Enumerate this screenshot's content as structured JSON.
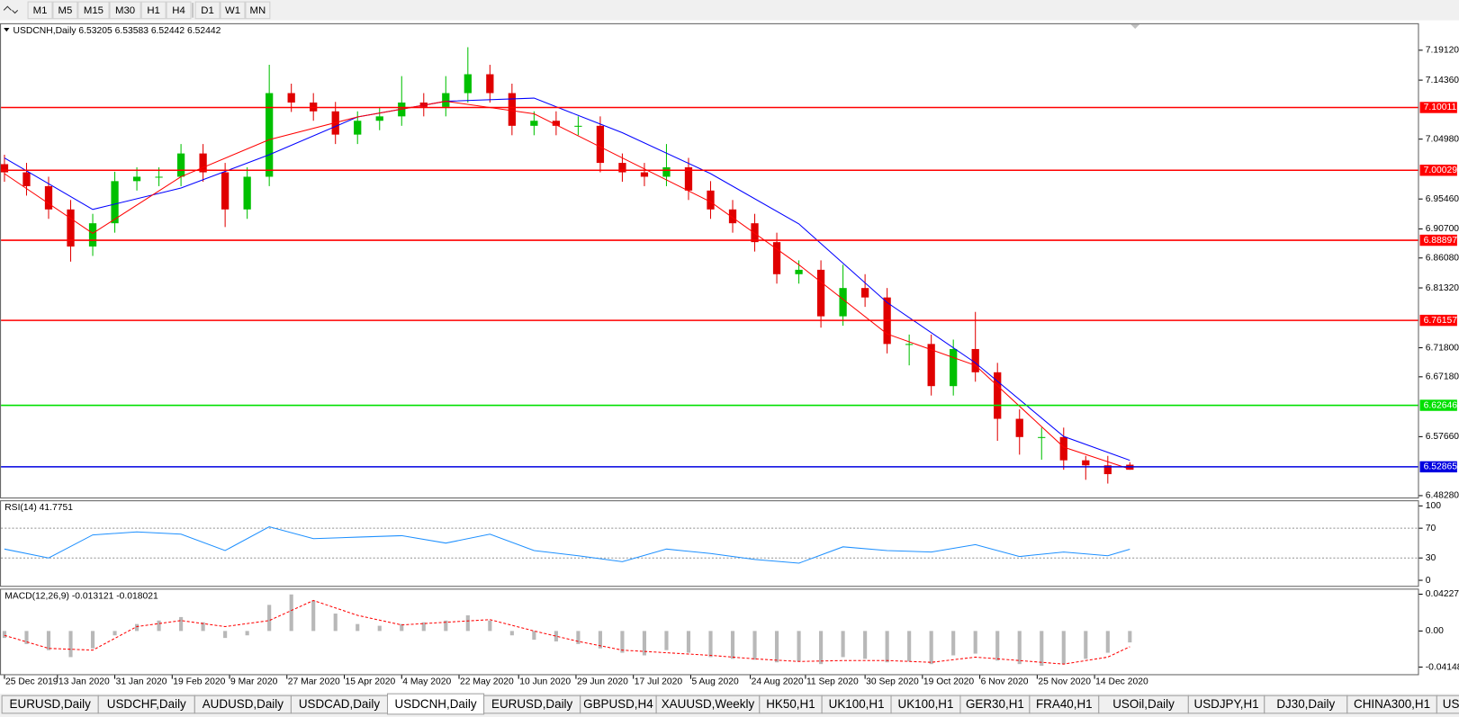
{
  "toolbar": [
    "M1",
    "M5",
    "M15",
    "M30",
    "H1",
    "H4",
    "D1",
    "W1",
    "MN"
  ],
  "tabs": [
    "EURUSD,Daily",
    "USDCHF,Daily",
    "AUDUSD,Daily",
    "USDCAD,Daily",
    "USDCNH,Daily",
    "EURUSD,Daily",
    "GBPUSD,H4",
    "XAUUSD,Weekly",
    "HK50,H1",
    "UK100,H1",
    "UK100,H1",
    "GER30,H1",
    "FRA40,H1",
    "USOil,Daily",
    "USDJPY,H1",
    "DJ30,Daily",
    "CHINA300,H1",
    "US"
  ],
  "chart_data": [
    {
      "type": "candlestick",
      "title": "USDCNH,Daily  6.53205 6.53583 6.52442 6.52442",
      "x": [
        0,
        1,
        2,
        3,
        4,
        5,
        6,
        7,
        8,
        9,
        10,
        11,
        12,
        13,
        14,
        15,
        16,
        17,
        18,
        19,
        20,
        21,
        22,
        23,
        24,
        25,
        26,
        27,
        28,
        29,
        30,
        31,
        32,
        33,
        34,
        35,
        36,
        37,
        38,
        39,
        40,
        41,
        42,
        43,
        44,
        45,
        46,
        47,
        48,
        49,
        50,
        51
      ],
      "open": [
        7.01,
        6.997,
        6.975,
        6.938,
        6.879,
        6.916,
        6.983,
        6.99,
        6.99,
        7.027,
        6.997,
        6.938,
        6.99,
        7.123,
        7.108,
        7.094,
        7.057,
        7.079,
        7.086,
        7.108,
        7.101,
        7.123,
        7.153,
        7.123,
        7.071,
        7.079,
        7.071,
        7.071,
        7.012,
        6.997,
        6.99,
        7.005,
        6.968,
        6.938,
        6.916,
        6.886,
        6.835,
        6.842,
        6.768,
        6.813,
        6.798,
        6.724,
        6.724,
        6.657,
        6.716,
        6.679,
        6.605,
        6.576,
        6.576,
        6.539,
        6.531,
        6.532
      ],
      "high": [
        7.025,
        7.012,
        6.99,
        6.953,
        6.931,
        6.998,
        7.005,
        7.005,
        7.042,
        7.042,
        7.012,
        7.005,
        7.168,
        7.138,
        7.123,
        7.109,
        7.094,
        7.101,
        7.15,
        7.123,
        7.15,
        7.196,
        7.168,
        7.138,
        7.094,
        7.094,
        7.086,
        7.086,
        7.027,
        7.012,
        7.042,
        7.02,
        6.983,
        6.953,
        6.931,
        6.901,
        6.857,
        6.857,
        6.85,
        6.835,
        6.813,
        6.739,
        6.739,
        6.731,
        6.775,
        6.694,
        6.62,
        6.591,
        6.591,
        6.546,
        6.546,
        6.536
      ],
      "low": [
        6.982,
        6.96,
        6.923,
        6.855,
        6.864,
        6.901,
        6.968,
        6.975,
        6.975,
        6.982,
        6.91,
        6.923,
        6.975,
        7.093,
        7.079,
        7.042,
        7.042,
        7.064,
        7.071,
        7.086,
        7.086,
        7.108,
        7.108,
        7.056,
        7.056,
        7.056,
        7.056,
        6.997,
        6.982,
        6.975,
        6.975,
        6.953,
        6.923,
        6.901,
        6.871,
        6.82,
        6.82,
        6.75,
        6.753,
        6.783,
        6.709,
        6.69,
        6.642,
        6.642,
        6.664,
        6.57,
        6.548,
        6.54,
        6.524,
        6.508,
        6.502,
        6.524
      ],
      "close": [
        6.997,
        6.975,
        6.938,
        6.879,
        6.916,
        6.983,
        6.99,
        6.99,
        7.027,
        6.997,
        6.938,
        6.99,
        7.123,
        7.108,
        7.094,
        7.057,
        7.079,
        7.086,
        7.108,
        7.101,
        7.123,
        7.153,
        7.123,
        7.071,
        7.079,
        7.071,
        7.071,
        7.012,
        6.997,
        6.99,
        7.005,
        6.968,
        6.938,
        6.916,
        6.886,
        6.835,
        6.842,
        6.768,
        6.813,
        6.798,
        6.724,
        6.724,
        6.657,
        6.716,
        6.679,
        6.605,
        6.576,
        6.576,
        6.539,
        6.531,
        6.517,
        6.524
      ],
      "up_color": "#00c000",
      "down_color": "#e00000",
      "lines": [
        {
          "color": "#0000ff",
          "x": [
            0,
            4,
            8,
            12,
            16,
            20,
            24,
            28,
            32,
            36,
            40,
            44,
            48,
            51
          ],
          "values": [
            7.02,
            6.938,
            6.972,
            7.025,
            7.085,
            7.11,
            7.115,
            7.06,
            6.995,
            6.915,
            6.79,
            6.694,
            6.577,
            6.539
          ]
        },
        {
          "color": "#ff0000",
          "x": [
            0,
            4,
            8,
            12,
            16,
            20,
            24,
            28,
            32,
            36,
            40,
            44,
            48,
            51
          ],
          "values": [
            6.995,
            6.9,
            6.99,
            7.049,
            7.085,
            7.11,
            7.09,
            7.02,
            6.95,
            6.85,
            6.74,
            6.69,
            6.56,
            6.525
          ]
        }
      ],
      "hlines": [
        {
          "value": 7.10011,
          "color": "#ff0000"
        },
        {
          "value": 7.00029,
          "color": "#ff0000"
        },
        {
          "value": 6.88897,
          "color": "#ff0000"
        },
        {
          "value": 6.76157,
          "color": "#ff0000"
        },
        {
          "value": 6.62646,
          "color": "#00e000"
        },
        {
          "value": 6.52865,
          "color": "#0000e0"
        }
      ],
      "xlim": [
        -0.2,
        64.1
      ],
      "xticks": [
        {
          "value": 0,
          "label": "25 Dec 2019"
        },
        {
          "value": 2.4,
          "label": "13 Jan 2020"
        },
        {
          "value": 5.0,
          "label": "31 Jan 2020"
        },
        {
          "value": 7.6,
          "label": "19 Feb 2020"
        },
        {
          "value": 10.2,
          "label": "9 Mar 2020"
        },
        {
          "value": 12.8,
          "label": "27 Mar 2020"
        },
        {
          "value": 15.4,
          "label": "15 Apr 2020"
        },
        {
          "value": 18.0,
          "label": "4 May 2020"
        },
        {
          "value": 20.6,
          "label": "22 May 2020"
        },
        {
          "value": 23.3,
          "label": "10 Jun 2020"
        },
        {
          "value": 25.9,
          "label": "29 Jun 2020"
        },
        {
          "value": 28.5,
          "label": "17 Jul 2020"
        },
        {
          "value": 31.1,
          "label": "5 Aug 2020"
        },
        {
          "value": 33.8,
          "label": "24 Aug 2020"
        },
        {
          "value": 36.3,
          "label": "11 Sep 2020"
        },
        {
          "value": 39.0,
          "label": "30 Sep 2020"
        },
        {
          "value": 41.6,
          "label": "19 Oct 2020"
        },
        {
          "value": 44.2,
          "label": "6 Nov 2020"
        },
        {
          "value": 46.8,
          "label": "25 Nov 2020"
        },
        {
          "value": 49.4,
          "label": "14 Dec 2020"
        }
      ],
      "ylim": [
        6.4798,
        7.2341
      ],
      "yticks": [
        {
          "value": 7.1912,
          "label": "7.19120"
        },
        {
          "value": 7.1436,
          "label": "7.14360"
        },
        {
          "value": 7.0498,
          "label": "7.04980"
        },
        {
          "value": 6.9546,
          "label": "6.95460"
        },
        {
          "value": 6.907,
          "label": "6.90700"
        },
        {
          "value": 6.8608,
          "label": "6.86080"
        },
        {
          "value": 6.8132,
          "label": "6.81320"
        },
        {
          "value": 6.718,
          "label": "6.71800"
        },
        {
          "value": 6.6718,
          "label": "6.67180"
        },
        {
          "value": 6.5766,
          "label": "6.57660"
        },
        {
          "value": 6.4828,
          "label": "6.48280"
        }
      ]
    },
    {
      "type": "line",
      "title": "RSI(14) 41.7751",
      "color": "#1e90ff",
      "x": [
        0,
        2,
        4,
        6,
        8,
        10,
        12,
        14,
        16,
        18,
        20,
        22,
        24,
        26,
        28,
        30,
        32,
        34,
        36,
        38,
        40,
        42,
        44,
        46,
        48,
        50,
        51
      ],
      "values": [
        42,
        30,
        61,
        65,
        62,
        40,
        72,
        56,
        58,
        60,
        50,
        62,
        40,
        33,
        25,
        42,
        36,
        28,
        23,
        45,
        40,
        38,
        48,
        32,
        38,
        33,
        41.8
      ],
      "ylim": [
        -7.5,
        107.5
      ],
      "yticks": [
        100,
        70,
        30,
        0
      ],
      "levels": [
        70,
        30
      ]
    },
    {
      "type": "macd",
      "title": "MACD(12,26,9) -0.013121 -0.018021",
      "color": "#b8b8b8",
      "signal_color": "#ff0000",
      "x": [
        0,
        1,
        2,
        3,
        4,
        5,
        6,
        7,
        8,
        9,
        10,
        11,
        12,
        13,
        14,
        15,
        16,
        17,
        18,
        19,
        20,
        21,
        22,
        23,
        24,
        25,
        26,
        27,
        28,
        29,
        30,
        31,
        32,
        33,
        34,
        35,
        36,
        37,
        38,
        39,
        40,
        41,
        42,
        43,
        44,
        45,
        46,
        47,
        48,
        49,
        50,
        51
      ],
      "values": [
        -0.008,
        -0.015,
        -0.022,
        -0.03,
        -0.02,
        -0.005,
        0.008,
        0.012,
        0.016,
        0.01,
        -0.008,
        -0.005,
        0.03,
        0.042,
        0.035,
        0.02,
        0.008,
        0.006,
        0.008,
        0.01,
        0.012,
        0.018,
        0.012,
        -0.005,
        -0.01,
        -0.012,
        -0.015,
        -0.02,
        -0.025,
        -0.028,
        -0.022,
        -0.025,
        -0.03,
        -0.032,
        -0.033,
        -0.036,
        -0.035,
        -0.038,
        -0.03,
        -0.032,
        -0.036,
        -0.035,
        -0.038,
        -0.028,
        -0.026,
        -0.034,
        -0.038,
        -0.04,
        -0.038,
        -0.032,
        -0.025,
        -0.013121
      ],
      "signal_x": [
        0,
        2,
        4,
        6,
        8,
        10,
        12,
        14,
        16,
        18,
        20,
        22,
        24,
        26,
        28,
        30,
        32,
        34,
        36,
        38,
        40,
        42,
        44,
        46,
        48,
        50,
        51
      ],
      "signal": [
        -0.005,
        -0.02,
        -0.022,
        0.005,
        0.012,
        0.005,
        0.012,
        0.035,
        0.018,
        0.007,
        0.01,
        0.013,
        0.0,
        -0.012,
        -0.022,
        -0.025,
        -0.028,
        -0.032,
        -0.035,
        -0.034,
        -0.034,
        -0.036,
        -0.03,
        -0.034,
        -0.038,
        -0.03,
        -0.018021
      ],
      "ylim": [
        -0.04967,
        0.04862
      ],
      "yticks": [
        0.042275,
        {
          "value": 0,
          "label": "0.00"
        },
        -0.04148
      ]
    }
  ]
}
